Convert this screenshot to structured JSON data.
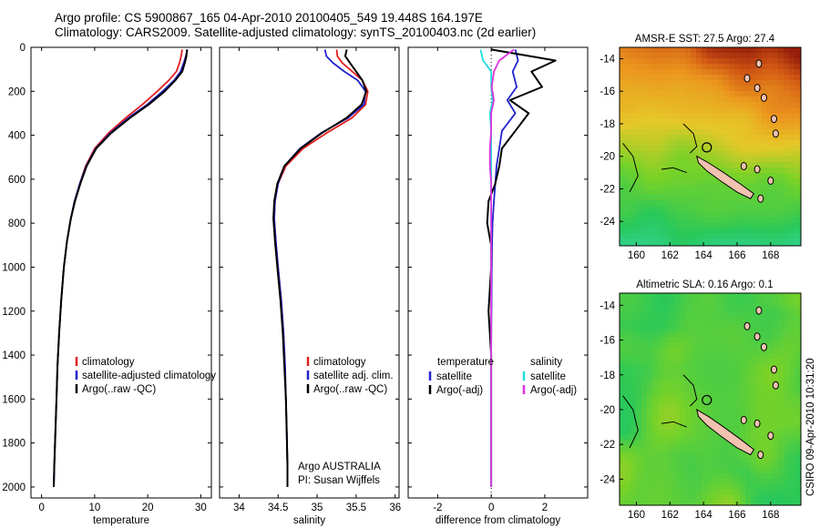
{
  "header": {
    "line1": "Argo profile: CS 5900867_165 04-Apr-2010 20100405_549 19.448S 164.197E",
    "line2": "Climatology: CARS2009. Satellite-adjusted climatology: synTS_20100403.nc (2d earlier)"
  },
  "side_label": "CSIRO 09-Apr-2010 10:31:20",
  "colors": {
    "clim": "#e02020",
    "sat": "#2222cc",
    "argo": "#000000",
    "cyan": "#22dddd",
    "magenta": "#dd33dd"
  },
  "chart_data": [
    {
      "type": "line",
      "id": "temperature",
      "xlabel": "temperature",
      "xlim": [
        -2,
        32
      ],
      "ylim": [
        2050,
        0
      ],
      "xticks": [
        0,
        10,
        20,
        30
      ],
      "yticks": [
        0,
        200,
        400,
        600,
        800,
        1000,
        1200,
        1400,
        1600,
        1800,
        2000
      ],
      "legend": {
        "position": "lower-right",
        "entries": [
          "climatology",
          "satellite-adjusted climatology",
          "Argo(..raw -QC)"
        ]
      },
      "series": [
        {
          "name": "climatology",
          "color": "clim",
          "x": [
            26.5,
            26.3,
            26.0,
            25.4,
            24.0,
            21.8,
            19.0,
            15.9,
            12.6,
            10.0,
            8.3,
            7.2,
            6.2,
            5.5,
            4.8,
            4.2,
            3.7,
            3.3,
            3.0,
            2.8,
            2.6,
            2.4,
            2.3
          ],
          "y": [
            10,
            40,
            70,
            110,
            150,
            200,
            260,
            320,
            390,
            460,
            540,
            620,
            700,
            780,
            880,
            1000,
            1150,
            1300,
            1450,
            1600,
            1750,
            1900,
            2000
          ]
        },
        {
          "name": "satellite-adjusted climatology",
          "color": "sat",
          "x": [
            27.5,
            27.2,
            26.8,
            26.2,
            25.0,
            22.8,
            19.9,
            16.4,
            12.9,
            10.2,
            8.4,
            7.2,
            6.2,
            5.5,
            4.8,
            4.2,
            3.7,
            3.3,
            3.0,
            2.8,
            2.6,
            2.4,
            2.3
          ],
          "y": [
            10,
            40,
            70,
            110,
            150,
            200,
            260,
            320,
            390,
            460,
            540,
            620,
            700,
            780,
            880,
            1000,
            1150,
            1300,
            1450,
            1600,
            1750,
            1900,
            2000
          ]
        },
        {
          "name": "Argo(..raw -QC)",
          "color": "argo",
          "x": [
            27.4,
            27.3,
            27.0,
            26.5,
            25.2,
            23.2,
            20.2,
            16.7,
            13.1,
            10.3,
            8.5,
            7.3,
            6.3,
            5.5,
            4.8,
            4.2,
            3.7,
            3.3,
            3.0,
            2.8,
            2.6,
            2.4,
            2.3
          ],
          "y": [
            10,
            40,
            70,
            110,
            150,
            200,
            260,
            320,
            390,
            460,
            540,
            620,
            700,
            780,
            880,
            1000,
            1150,
            1300,
            1450,
            1600,
            1750,
            1900,
            2000
          ]
        }
      ]
    },
    {
      "type": "line",
      "id": "salinity",
      "xlabel": "salinity",
      "xlim": [
        33.75,
        36.05
      ],
      "ylim": [
        2050,
        0
      ],
      "xticks": [
        34,
        34.5,
        35,
        35.5,
        36
      ],
      "xtick_labels": [
        "34",
        "34.5",
        "35",
        "35.5",
        "36"
      ],
      "legend": {
        "position": "lower-right",
        "entries": [
          "climatology",
          "satellite adj. clim.",
          "Argo(..raw -QC)"
        ]
      },
      "annotation": [
        "Argo AUSTRALIA",
        "PI: Susan Wijffels"
      ],
      "series": [
        {
          "name": "climatology",
          "color": "clim",
          "x": [
            35.25,
            35.26,
            35.32,
            35.45,
            35.58,
            35.65,
            35.62,
            35.45,
            35.12,
            34.82,
            34.6,
            34.5,
            34.46,
            34.45,
            34.47,
            34.5,
            34.54,
            34.57,
            34.59,
            34.6,
            34.61,
            34.62,
            34.62
          ],
          "y": [
            10,
            40,
            70,
            110,
            150,
            200,
            260,
            320,
            390,
            460,
            540,
            620,
            700,
            780,
            880,
            1000,
            1150,
            1300,
            1450,
            1600,
            1750,
            1900,
            2000
          ]
        },
        {
          "name": "satellite adj. clim.",
          "color": "sat",
          "x": [
            35.1,
            35.12,
            35.2,
            35.35,
            35.52,
            35.62,
            35.6,
            35.4,
            35.05,
            34.78,
            34.58,
            34.5,
            34.46,
            34.45,
            34.47,
            34.5,
            34.54,
            34.57,
            34.59,
            34.6,
            34.61,
            34.62,
            34.62
          ],
          "y": [
            10,
            40,
            70,
            110,
            150,
            200,
            260,
            320,
            390,
            460,
            540,
            620,
            700,
            780,
            880,
            1000,
            1150,
            1300,
            1450,
            1600,
            1750,
            1900,
            2000
          ]
        },
        {
          "name": "Argo(..raw -QC)",
          "color": "argo",
          "x": [
            35.38,
            35.36,
            35.42,
            35.5,
            35.58,
            35.63,
            35.57,
            35.38,
            35.06,
            34.79,
            34.58,
            34.49,
            34.45,
            34.44,
            34.46,
            34.49,
            34.53,
            34.56,
            34.58,
            34.6,
            34.61,
            34.62,
            34.62
          ],
          "y": [
            10,
            40,
            70,
            110,
            150,
            200,
            260,
            320,
            390,
            460,
            540,
            620,
            700,
            780,
            880,
            1000,
            1150,
            1300,
            1450,
            1600,
            1750,
            1900,
            2000
          ]
        }
      ]
    },
    {
      "type": "line",
      "id": "difference",
      "xlabel": "difference from climatology",
      "xlim": [
        -3.1,
        3.6
      ],
      "ylim": [
        2050,
        0
      ],
      "xticks": [
        -2,
        0,
        2
      ],
      "legend": {
        "position": "lower-center",
        "headers": [
          "temperature",
          "salinity"
        ],
        "entries": [
          "satellite",
          "Argo(-adj)",
          "satellite",
          "Argo(-adj)"
        ]
      },
      "series": [
        {
          "name": "temperature satellite",
          "color": "sat",
          "x": [
            0.9,
            1.0,
            0.8,
            0.95,
            0.6,
            0.9,
            0.4,
            0.3,
            0.2,
            0.15,
            0.1,
            0.05,
            0.03,
            0.02,
            0.01,
            0.0,
            0.0,
            0.0,
            0.0,
            0.0,
            0.0
          ],
          "y": [
            10,
            60,
            110,
            180,
            240,
            300,
            380,
            460,
            540,
            620,
            700,
            800,
            900,
            1000,
            1200,
            1400,
            1500,
            1600,
            1800,
            1900,
            2000
          ]
        },
        {
          "name": "temperature Argo(-adj)",
          "color": "argo",
          "x": [
            0.0,
            2.4,
            1.5,
            1.9,
            0.7,
            1.4,
            0.9,
            0.4,
            0.3,
            0.15,
            -0.1,
            -0.15,
            0.0,
            0.0,
            -0.1,
            0.0,
            0.0,
            0.0,
            0.0,
            0.0,
            0.0
          ],
          "y": [
            10,
            60,
            110,
            180,
            240,
            300,
            380,
            460,
            540,
            620,
            700,
            800,
            900,
            1000,
            1200,
            1400,
            1500,
            1600,
            1800,
            1900,
            2000
          ]
        },
        {
          "name": "salinity satellite",
          "color": "cyan",
          "x": [
            -0.4,
            -0.3,
            0.0,
            0.0,
            0.05,
            -0.05,
            0.0,
            0.0,
            0.0,
            0.0,
            0.0,
            0.0,
            0.0,
            0.0,
            0.0,
            0.0,
            0.0,
            0.0,
            0.0,
            0.0,
            0.0
          ],
          "y": [
            10,
            60,
            110,
            180,
            240,
            300,
            380,
            460,
            540,
            620,
            700,
            800,
            900,
            1000,
            1200,
            1400,
            1500,
            1600,
            1800,
            1900,
            2000
          ]
        },
        {
          "name": "salinity Argo(-adj)",
          "color": "magenta",
          "x": [
            0.85,
            0.3,
            0.1,
            0.02,
            0.1,
            0.0,
            0.0,
            -0.05,
            -0.05,
            0.0,
            0.0,
            0.0,
            0.0,
            0.0,
            0.0,
            0.0,
            0.0,
            0.0,
            0.0,
            0.0,
            0.0
          ],
          "y": [
            10,
            60,
            110,
            180,
            240,
            300,
            380,
            460,
            540,
            620,
            700,
            800,
            900,
            1000,
            1200,
            1400,
            1500,
            1600,
            1800,
            1900,
            2000
          ]
        }
      ]
    },
    {
      "type": "heatmap",
      "id": "sst_map",
      "title": "AMSR-E SST: 27.5 Argo: 27.4",
      "xlim": [
        159,
        169.8
      ],
      "ylim": [
        -25.5,
        -13.3
      ],
      "xticks": [
        160,
        162,
        164,
        166,
        168
      ],
      "yticks": [
        -14,
        -16,
        -18,
        -20,
        -22,
        -24
      ],
      "argo_position": [
        164.197,
        -19.448
      ]
    },
    {
      "type": "heatmap",
      "id": "sla_map",
      "title": "Altimetric SLA: 0.16 Argo: 0.1",
      "xlim": [
        159,
        169.8
      ],
      "ylim": [
        -25.5,
        -13.3
      ],
      "xticks": [
        160,
        162,
        164,
        166,
        168
      ],
      "yticks": [
        -14,
        -16,
        -18,
        -20,
        -22,
        -24
      ],
      "argo_position": [
        164.197,
        -19.448
      ]
    }
  ]
}
